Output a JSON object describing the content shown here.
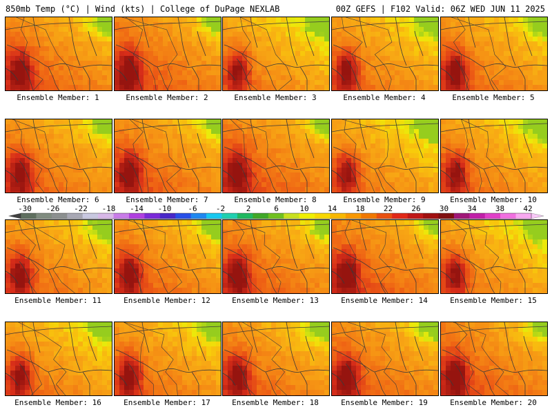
{
  "header": {
    "left": "850mb Temp (°C) | Wind (kts) | College of DuPage NEXLAB",
    "right": "00Z GEFS | F102 Valid: 06Z WED JUN 11 2025"
  },
  "panels": [
    {
      "label": "Ensemble Member: 1"
    },
    {
      "label": "Ensemble Member: 2"
    },
    {
      "label": "Ensemble Member: 3"
    },
    {
      "label": "Ensemble Member: 4"
    },
    {
      "label": "Ensemble Member: 5"
    },
    {
      "label": "Ensemble Member: 6"
    },
    {
      "label": "Ensemble Member: 7"
    },
    {
      "label": "Ensemble Member: 8"
    },
    {
      "label": "Ensemble Member: 9"
    },
    {
      "label": "Ensemble Member: 10"
    },
    {
      "label": "Ensemble Member: 11"
    },
    {
      "label": "Ensemble Member: 12"
    },
    {
      "label": "Ensemble Member: 13"
    },
    {
      "label": "Ensemble Member: 14"
    },
    {
      "label": "Ensemble Member: 15"
    },
    {
      "label": "Ensemble Member: 16"
    },
    {
      "label": "Ensemble Member: 17"
    },
    {
      "label": "Ensemble Member: 18"
    },
    {
      "label": "Ensemble Member: 19"
    },
    {
      "label": "Ensemble Member: 20"
    }
  ],
  "colorbar": {
    "tick_labels": [
      "-30",
      "-26",
      "-22",
      "-18",
      "-14",
      "-10",
      "-6",
      "-2",
      "2",
      "6",
      "10",
      "14",
      "18",
      "22",
      "26",
      "30",
      "34",
      "38",
      "42"
    ],
    "colors": [
      "#5f6f5f",
      "#808c80",
      "#8c9090",
      "#a8a8b4",
      "#c8c8e0",
      "#d8b8e8",
      "#c87ce8",
      "#b040e0",
      "#7a2ad8",
      "#4828c8",
      "#2850e8",
      "#2088f0",
      "#18c8f0",
      "#20d0b0",
      "#20b860",
      "#40a828",
      "#70c020",
      "#c8e020",
      "#f0f000",
      "#f8d800",
      "#f8b800",
      "#f89800",
      "#f07800",
      "#e85010",
      "#e02818",
      "#c01818",
      "#a01010",
      "#801010",
      "#a01878",
      "#c020a8",
      "#e040c8",
      "#f070e0",
      "#f8a8f0"
    ],
    "arrow_left_color": "#404040",
    "arrow_right_color": "#f8c8f8"
  }
}
